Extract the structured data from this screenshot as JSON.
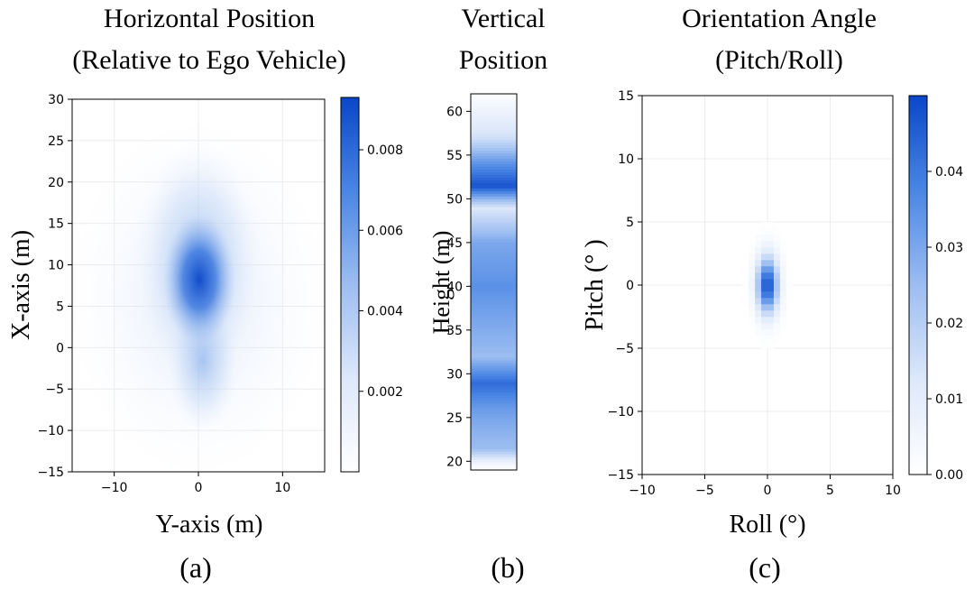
{
  "colors": {
    "low": "#ffffff",
    "high": "#0a46c8",
    "axis": "#000000",
    "grid": "#ececec"
  },
  "chart_data": [
    {
      "type": "heatmap",
      "title": "Horizontal Position\n(Relative to Ego Vehicle)",
      "xlabel": "Y-axis (m)",
      "ylabel": "X-axis (m)",
      "caption": "(a)",
      "xlim": [
        -15,
        15
      ],
      "ylim": [
        -15,
        30
      ],
      "xticks": [
        -10,
        0,
        10
      ],
      "yticks": [
        -15,
        -10,
        -5,
        0,
        5,
        10,
        15,
        20,
        25,
        30
      ],
      "grid": true,
      "colorbar": {
        "min": 0,
        "max": 0.0093,
        "ticks": [
          "0.002",
          "0.004",
          "0.006",
          "0.008"
        ],
        "tick_values": [
          0.002,
          0.004,
          0.006,
          0.008
        ]
      },
      "density_peak": {
        "x": 0,
        "y": 8,
        "value": 0.009
      },
      "density_extent": {
        "x": [
          -10,
          10
        ],
        "y": [
          -10,
          25
        ]
      }
    },
    {
      "type": "heatmap",
      "title": "Vertical\nPosition",
      "xlabel": "",
      "ylabel": "Height (m)",
      "caption": "(b)",
      "ylim": [
        19,
        62
      ],
      "yticks": [
        20,
        25,
        30,
        35,
        40,
        45,
        50,
        55,
        60
      ],
      "profile": [
        {
          "height": 19.5,
          "intensity": 0.05
        },
        {
          "height": 21.5,
          "intensity": 0.5
        },
        {
          "height": 23.5,
          "intensity": 0.55
        },
        {
          "height": 26,
          "intensity": 0.65
        },
        {
          "height": 29,
          "intensity": 0.85
        },
        {
          "height": 32,
          "intensity": 0.5
        },
        {
          "height": 36,
          "intensity": 0.6
        },
        {
          "height": 40,
          "intensity": 0.7
        },
        {
          "height": 45,
          "intensity": 0.6
        },
        {
          "height": 49,
          "intensity": 0.25
        },
        {
          "height": 51.5,
          "intensity": 0.95
        },
        {
          "height": 54,
          "intensity": 0.7
        },
        {
          "height": 57,
          "intensity": 0.3
        },
        {
          "height": 62,
          "intensity": 0.02
        }
      ]
    },
    {
      "type": "heatmap",
      "title": "Orientation Angle\n(Pitch/Roll)",
      "xlabel": "Roll (°)",
      "ylabel": "Pitch (°  )",
      "caption": "(c)",
      "xlim": [
        -10,
        10
      ],
      "ylim": [
        -15,
        15
      ],
      "xticks": [
        -10,
        -5,
        0,
        5,
        10
      ],
      "yticks": [
        -15,
        -10,
        -5,
        0,
        5,
        10,
        15
      ],
      "grid": true,
      "colorbar": {
        "min": 0,
        "max": 0.05,
        "ticks": [
          "0.00",
          "0.01",
          "0.02",
          "0.03",
          "0.04"
        ],
        "tick_values": [
          0,
          0.01,
          0.02,
          0.03,
          0.04
        ]
      },
      "density_peak": {
        "x": 0,
        "y": 0,
        "value": 0.048
      },
      "density_spread": {
        "roll_sd": 0.6,
        "pitch_sd": 1.6
      }
    }
  ]
}
